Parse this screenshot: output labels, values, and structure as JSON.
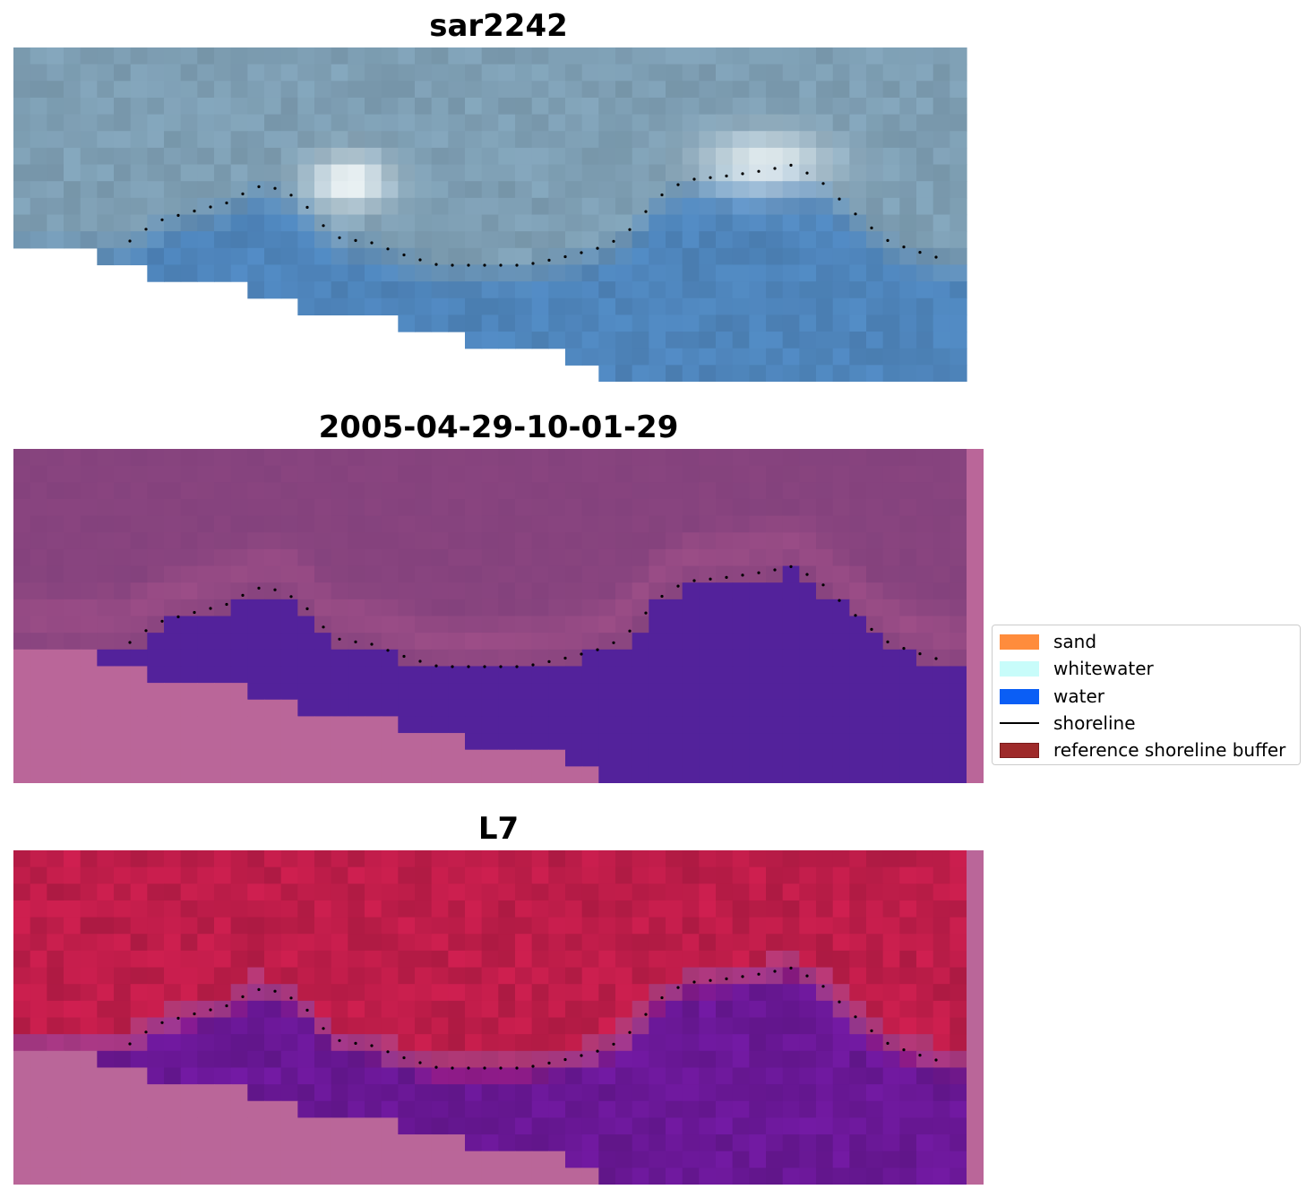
{
  "panels": [
    {
      "id": "rgb",
      "title": "sar2242"
    },
    {
      "id": "classified",
      "title": "2005-04-29-10-01-29"
    },
    {
      "id": "index",
      "title": "L7"
    }
  ],
  "legend": {
    "items": [
      {
        "label": "sand",
        "kind": "patch",
        "color": "#ff8c3c"
      },
      {
        "label": "whitewater",
        "kind": "patch",
        "color": "#c8fcfa"
      },
      {
        "label": "water",
        "kind": "patch",
        "color": "#0a5ef5"
      },
      {
        "label": "shoreline",
        "kind": "line",
        "color": "#000000"
      },
      {
        "label": "reference shoreline buffer",
        "kind": "patch",
        "color": "#9e2a2a",
        "edge": "#7a1c1c"
      }
    ]
  },
  "colors": {
    "nodata": "#ba6699",
    "water_class": "#53229b",
    "land_class": "#84427d",
    "rgb_land": "#7fa0b5",
    "rgb_water": "#4f86bd",
    "index_land": "#c01d4a",
    "index_water": "#6b1898",
    "shoreline": "#000000"
  }
}
